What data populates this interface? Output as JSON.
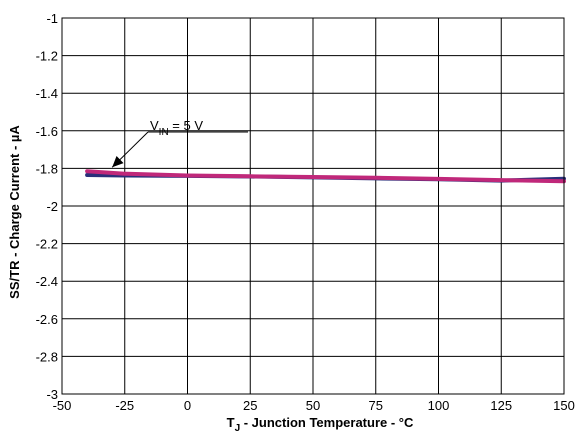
{
  "chart_data": {
    "type": "line",
    "xlabel_main": "T",
    "xlabel_sub": "J",
    "xlabel_rest": " - Junction Temperature - °C",
    "ylabel": "SS/TR - Charge Current - µA",
    "xlim": [
      -50,
      150
    ],
    "ylim": [
      -3,
      -1
    ],
    "xticks": [
      -50,
      -25,
      0,
      25,
      50,
      75,
      100,
      125,
      150
    ],
    "yticks": [
      -1,
      -1.2,
      -1.4,
      -1.6,
      -1.8,
      -2,
      -2.2,
      -2.4,
      -2.6,
      -2.8,
      -3
    ],
    "grid": true,
    "series": [
      {
        "color": "#2a2f7a",
        "x": [
          -40,
          -25,
          0,
          25,
          50,
          75,
          100,
          125,
          150
        ],
        "y": [
          -1.835,
          -1.838,
          -1.84,
          -1.843,
          -1.848,
          -1.853,
          -1.858,
          -1.865,
          -1.855
        ]
      },
      {
        "color": "#c0287a",
        "x": [
          -40,
          -25,
          0,
          25,
          50,
          75,
          100,
          125,
          150
        ],
        "y": [
          -1.815,
          -1.828,
          -1.838,
          -1.842,
          -1.846,
          -1.85,
          -1.856,
          -1.862,
          -1.868
        ]
      }
    ],
    "annotation": {
      "main": "V",
      "sub": "IN",
      "rest": " = 5 V",
      "arrow_to": [
        -30,
        -1.815
      ]
    }
  }
}
